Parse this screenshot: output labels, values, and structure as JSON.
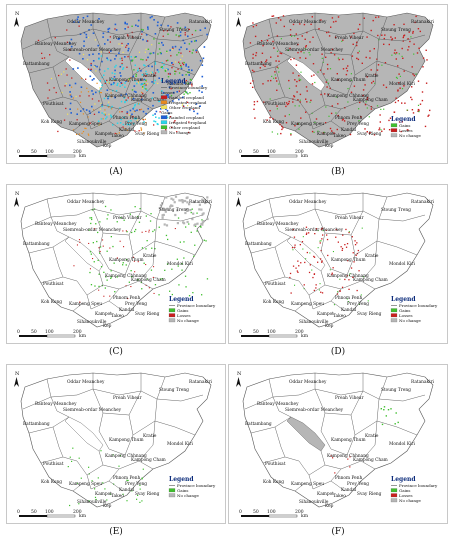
{
  "north_label": "N",
  "scale": {
    "ticks": [
      "0",
      "50",
      "100",
      "200"
    ],
    "unit": "km"
  },
  "province_labels": [
    "Oddar Meanchey",
    "Preah Vihear",
    "Stoung Treng",
    "Ratanakiri",
    "Banteay Meanchey",
    "Siemreab-ordar Meanchey",
    "Battambang",
    "Kampong Thum",
    "Kratie",
    "Mondol Kiri",
    "Pouthisat",
    "Kampong Chhnang",
    "Kampong Cham",
    "Koh Kong",
    "Kampong Speu",
    "Phnom Penh",
    "Prey Veng",
    "Kandal",
    "Svay Rieng",
    "Takeo",
    "Kampot",
    "Sihanoukville",
    "Kep"
  ],
  "colors": {
    "unchanged": "#b6b6b6",
    "rainfed_loss": "#c81e1e",
    "irrigated_loss": "#e88a1e",
    "other_loss": "#f2e35a",
    "rainfed_gain": "#1e5fd6",
    "irrigated_gain": "#2ad4e8",
    "other_gain": "#3fbf2e",
    "gains": "#3fbf2e",
    "losses": "#c81e1e",
    "boundary": "#555555"
  },
  "panels": [
    {
      "caption": "(A)",
      "legend": {
        "title": "Legend",
        "boundary_label": "Province boundary",
        "groups": [
          {
            "heading": "Losses",
            "items": [
              {
                "label": "Rainfed cropland",
                "color": "#c81e1e"
              },
              {
                "label": "Irrigated cropland",
                "color": "#e88a1e"
              },
              {
                "label": "Other cropland",
                "color": "#f2e35a"
              }
            ]
          },
          {
            "heading": "Gains",
            "items": [
              {
                "label": "Rainfed cropland",
                "color": "#1e5fd6"
              },
              {
                "label": "Irrigated cropland",
                "color": "#2ad4e8"
              },
              {
                "label": "Other cropland",
                "color": "#3fbf2e"
              }
            ]
          }
        ],
        "nochange_label": "No change"
      }
    },
    {
      "caption": "(B)",
      "legend": {
        "title": "Legend",
        "items": [
          {
            "label": "Gains",
            "color": "#3fbf2e"
          },
          {
            "label": "Losses",
            "color": "#c81e1e"
          },
          {
            "label": "No change",
            "color": "#b6b6b6"
          }
        ]
      }
    },
    {
      "caption": "(C)",
      "legend": {
        "title": "Legend",
        "boundary_label": "Province boundary",
        "items": [
          {
            "label": "Gains",
            "color": "#3fbf2e"
          },
          {
            "label": "Losses",
            "color": "#c81e1e"
          },
          {
            "label": "No change",
            "color": "#b6b6b6"
          }
        ]
      }
    },
    {
      "caption": "(D)",
      "legend": {
        "title": "Legend",
        "boundary_label": "Province boundary",
        "items": [
          {
            "label": "Gains",
            "color": "#3fbf2e"
          },
          {
            "label": "Losses",
            "color": "#c81e1e"
          },
          {
            "label": "No change",
            "color": "#b6b6b6"
          }
        ]
      }
    },
    {
      "caption": "(E)",
      "legend": {
        "title": "Legend",
        "boundary_label": "Province boundary",
        "items": [
          {
            "label": "Gains",
            "color": "#3fbf2e"
          },
          {
            "label": "No change",
            "color": "#b6b6b6"
          }
        ]
      }
    },
    {
      "caption": "(F)",
      "legend": {
        "title": "Legend",
        "boundary_label": "Province boundary",
        "items": [
          {
            "label": "Gains",
            "color": "#3fbf2e"
          },
          {
            "label": "Losses",
            "color": "#c81e1e"
          },
          {
            "label": "No change",
            "color": "#b6b6b6"
          }
        ]
      }
    }
  ]
}
